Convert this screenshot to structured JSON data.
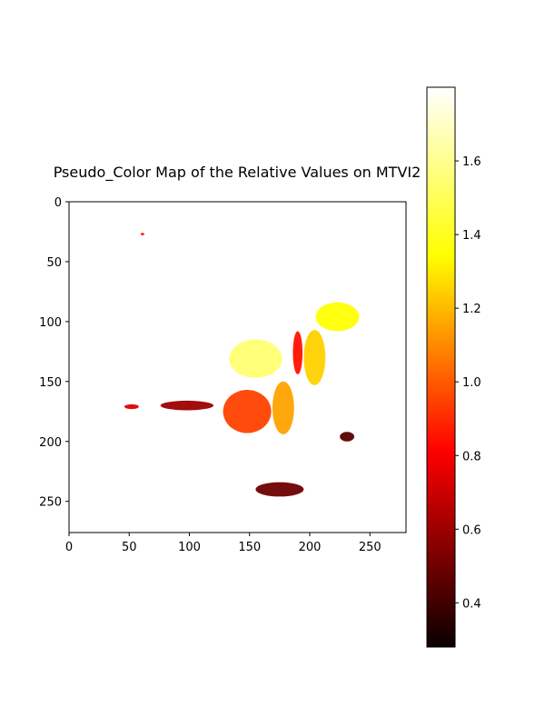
{
  "chart_data": {
    "type": "heatmap",
    "title": "Pseudo_Color Map of the Relative Values on MTVI2",
    "xlabel": "",
    "ylabel": "",
    "colormap": "hot",
    "xlim": [
      0,
      280
    ],
    "ylim": [
      276,
      0
    ],
    "x_ticks": [
      "0",
      "50",
      "100",
      "150",
      "200",
      "250"
    ],
    "y_ticks": [
      "0",
      "50",
      "100",
      "150",
      "200",
      "250"
    ],
    "colorbar": {
      "range": [
        0.28,
        1.8
      ],
      "ticks": [
        "0.4",
        "0.6",
        "0.8",
        "1.0",
        "1.2",
        "1.4",
        "1.6"
      ]
    },
    "regions": [
      {
        "name": "upper-right leaf",
        "shape": "ellipse",
        "cx": 223,
        "cy": 96,
        "rx": 18,
        "ry": 12,
        "value": 1.35
      },
      {
        "name": "central upper leaf",
        "shape": "ellipse",
        "cx": 155,
        "cy": 131,
        "rx": 22,
        "ry": 16,
        "value": 1.55
      },
      {
        "name": "right mid leaf",
        "shape": "ellipse",
        "cx": 204,
        "cy": 130,
        "rx": 9,
        "ry": 23,
        "value": 1.25
      },
      {
        "name": "lower left leaf",
        "shape": "ellipse",
        "cx": 148,
        "cy": 175,
        "rx": 20,
        "ry": 18,
        "value": 0.95
      },
      {
        "name": "lower middle leaf",
        "shape": "ellipse",
        "cx": 178,
        "cy": 172,
        "rx": 9,
        "ry": 22,
        "value": 1.15
      },
      {
        "name": "left shoot",
        "shape": "ellipse",
        "cx": 98,
        "cy": 170,
        "rx": 22,
        "ry": 4,
        "value": 0.6
      },
      {
        "name": "stem segment",
        "shape": "ellipse",
        "cx": 190,
        "cy": 126,
        "rx": 4,
        "ry": 18,
        "value": 0.85
      },
      {
        "name": "bottom debris",
        "shape": "ellipse",
        "cx": 175,
        "cy": 240,
        "rx": 20,
        "ry": 6,
        "value": 0.5
      },
      {
        "name": "right block",
        "shape": "ellipse",
        "cx": 231,
        "cy": 196,
        "rx": 6,
        "ry": 4,
        "value": 0.45
      },
      {
        "name": "far left specks",
        "shape": "ellipse",
        "cx": 52,
        "cy": 171,
        "rx": 6,
        "ry": 2,
        "value": 0.75
      },
      {
        "name": "top speck",
        "shape": "ellipse",
        "cx": 61,
        "cy": 27,
        "rx": 1.5,
        "ry": 1,
        "value": 0.85
      }
    ]
  }
}
